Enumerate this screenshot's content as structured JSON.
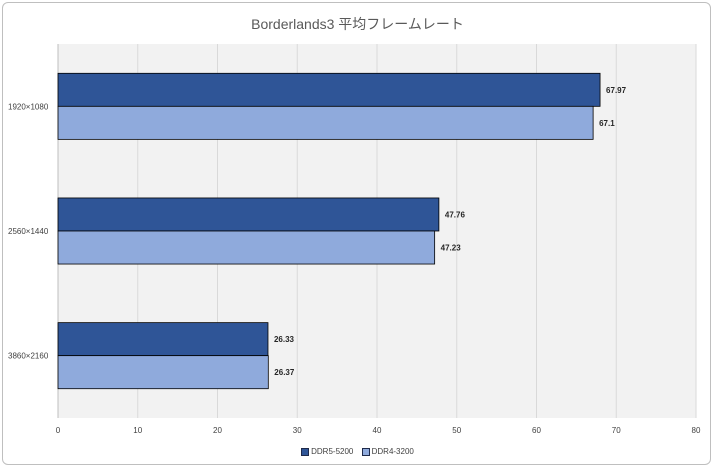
{
  "chart_data": {
    "type": "bar",
    "orientation": "horizontal",
    "title": "Borderlands3 平均フレームレート",
    "categories": [
      "1920×1080",
      "2560×1440",
      "3860×2160"
    ],
    "series": [
      {
        "name": "DDR5-5200",
        "values": [
          67.97,
          47.76,
          26.33
        ],
        "color": "#2f5597"
      },
      {
        "name": "DDR4-3200",
        "values": [
          67.1,
          47.23,
          26.37
        ],
        "color": "#8faadc"
      }
    ],
    "xlim": [
      0,
      80
    ],
    "xticks": [
      "0",
      "10",
      "20",
      "30",
      "40",
      "50",
      "60",
      "70",
      "80"
    ],
    "data_labels": [
      [
        "67.97",
        "47.76",
        "26.33"
      ],
      [
        "67.1",
        "47.23",
        "26.37"
      ]
    ],
    "grid": true,
    "plot_background": "#f2f2f2",
    "legend": "bottom"
  }
}
